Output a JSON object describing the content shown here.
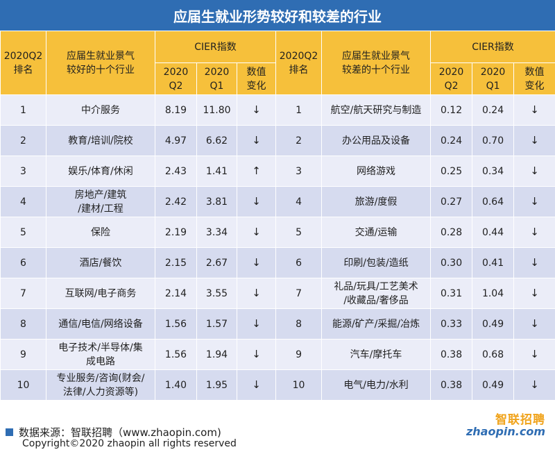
{
  "title": "应届生就业形势较好和较差的行业",
  "header": {
    "rank_label": "2020Q2\n排名",
    "good_industry_label": "应届生就业景气\n较好的十个行业",
    "bad_industry_label": "应届生就业景气\n较差的十个行业",
    "cier_label": "CIER指数",
    "q2_label": "2020\nQ2",
    "q1_label": "2020\nQ1",
    "change_label": "数值\n变化"
  },
  "chart_data": {
    "type": "table",
    "title": "应届生就业形势较好和较差的行业",
    "good": [
      {
        "rank": "1",
        "industry": "中介服务",
        "q2": "8.19",
        "q1": "11.80",
        "change": "↓"
      },
      {
        "rank": "2",
        "industry": "教育/培训/院校",
        "q2": "4.97",
        "q1": "6.62",
        "change": "↓"
      },
      {
        "rank": "3",
        "industry": "娱乐/体育/休闲",
        "q2": "2.43",
        "q1": "1.41",
        "change": "↑"
      },
      {
        "rank": "4",
        "industry": "房地产/建筑\n/建材/工程",
        "q2": "2.42",
        "q1": "3.81",
        "change": "↓"
      },
      {
        "rank": "5",
        "industry": "保险",
        "q2": "2.19",
        "q1": "3.34",
        "change": "↓"
      },
      {
        "rank": "6",
        "industry": "酒店/餐饮",
        "q2": "2.15",
        "q1": "2.67",
        "change": "↓"
      },
      {
        "rank": "7",
        "industry": "互联网/电子商务",
        "q2": "2.14",
        "q1": "3.55",
        "change": "↓"
      },
      {
        "rank": "8",
        "industry": "通信/电信/网络设备",
        "q2": "1.56",
        "q1": "1.57",
        "change": "↓"
      },
      {
        "rank": "9",
        "industry": "电子技术/半导体/集\n成电路",
        "q2": "1.56",
        "q1": "1.94",
        "change": "↓"
      },
      {
        "rank": "10",
        "industry": "专业服务/咨询(财会/\n法律/人力资源等)",
        "q2": "1.40",
        "q1": "1.95",
        "change": "↓"
      }
    ],
    "bad": [
      {
        "rank": "1",
        "industry": "航空/航天研究与制造",
        "q2": "0.12",
        "q1": "0.24",
        "change": "↓"
      },
      {
        "rank": "2",
        "industry": "办公用品及设备",
        "q2": "0.24",
        "q1": "0.70",
        "change": "↓"
      },
      {
        "rank": "3",
        "industry": "网络游戏",
        "q2": "0.25",
        "q1": "0.34",
        "change": "↓"
      },
      {
        "rank": "4",
        "industry": "旅游/度假",
        "q2": "0.27",
        "q1": "0.64",
        "change": "↓"
      },
      {
        "rank": "5",
        "industry": "交通/运输",
        "q2": "0.28",
        "q1": "0.44",
        "change": "↓"
      },
      {
        "rank": "6",
        "industry": "印刷/包装/造纸",
        "q2": "0.30",
        "q1": "0.41",
        "change": "↓"
      },
      {
        "rank": "7",
        "industry": "礼品/玩具/工艺美术\n/收藏品/奢侈品",
        "q2": "0.31",
        "q1": "1.04",
        "change": "↓"
      },
      {
        "rank": "8",
        "industry": "能源/矿产/采掘/冶炼",
        "q2": "0.33",
        "q1": "0.49",
        "change": "↓"
      },
      {
        "rank": "9",
        "industry": "汽车/摩托车",
        "q2": "0.38",
        "q1": "0.68",
        "change": "↓"
      },
      {
        "rank": "10",
        "industry": "电气/电力/水利",
        "q2": "0.38",
        "q1": "0.49",
        "change": "↓"
      }
    ]
  },
  "footer": {
    "source": "数据来源：智联招聘（www.zhaopin.com)",
    "copyright": "Copyright©2020 zhaopin all rights reserved",
    "logo_cn": "智联招聘",
    "logo_en": "zhaopin.com"
  },
  "colors": {
    "title_bg": "#2f6db3",
    "header_bg": "#f6c03b",
    "row_light": "#ebedf8",
    "row_dark": "#d6dbef"
  }
}
